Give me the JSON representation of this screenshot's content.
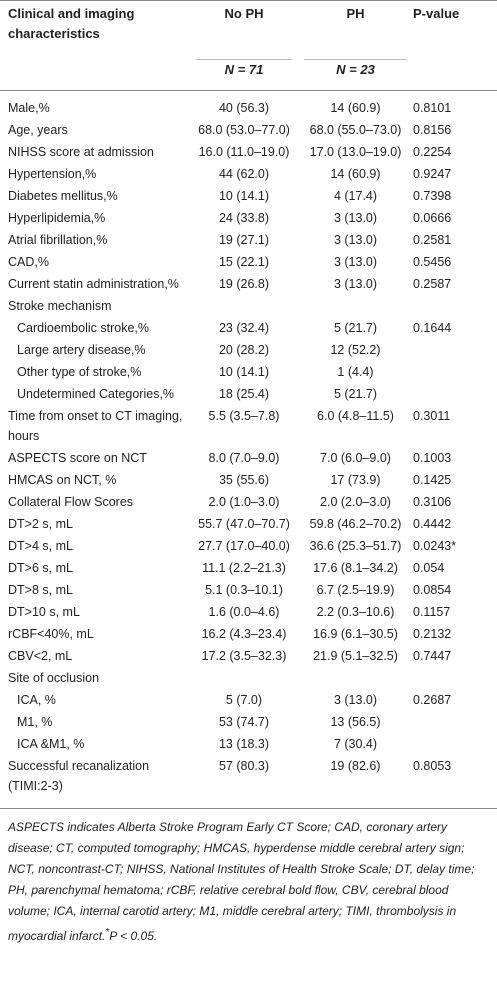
{
  "table": {
    "columns": [
      "Clinical and imaging characteristics",
      "No PH",
      "PH",
      "P-value"
    ],
    "n_row": [
      "N = 71",
      "N = 23"
    ],
    "rows": [
      {
        "label": "Male,%",
        "no_ph": "40 (56.3)",
        "ph": "14 (60.9)",
        "p": "0.8101"
      },
      {
        "label": "Age, years",
        "no_ph": "68.0 (53.0–77.0)",
        "ph": "68.0 (55.0–73.0)",
        "p": "0.8156"
      },
      {
        "label": "NIHSS score at admission",
        "no_ph": "16.0 (11.0–19.0)",
        "ph": "17.0 (13.0–19.0)",
        "p": "0.2254"
      },
      {
        "label": "Hypertension,%",
        "no_ph": "44 (62.0)",
        "ph": "14 (60.9)",
        "p": "0.9247"
      },
      {
        "label": "Diabetes mellitus,%",
        "no_ph": "10 (14.1)",
        "ph": "4 (17.4)",
        "p": "0.7398"
      },
      {
        "label": "Hyperlipidemia,%",
        "no_ph": "24 (33.8)",
        "ph": "3 (13.0)",
        "p": "0.0666"
      },
      {
        "label": "Atrial fibrillation,%",
        "no_ph": "19 (27.1)",
        "ph": "3 (13.0)",
        "p": "0.2581"
      },
      {
        "label": "CAD,%",
        "no_ph": "15 (22.1)",
        "ph": "3 (13.0)",
        "p": "0.5456"
      },
      {
        "label": "Current statin administration,%",
        "no_ph": "19 (26.8)",
        "ph": "3 (13.0)",
        "p": "0.2587"
      },
      {
        "label": "Stroke mechanism",
        "items": [
          {
            "label": "Cardioembolic stroke,%",
            "no_ph": "23 (32.4)",
            "ph": "5 (21.7)",
            "p": "0.1644"
          },
          {
            "label": "Large artery disease,%",
            "no_ph": "20 (28.2)",
            "ph": "12 (52.2)"
          },
          {
            "label": "Other type of stroke,%",
            "no_ph": "10 (14.1)",
            "ph": "1 (4.4)"
          },
          {
            "label": "Undetermined Categories,%",
            "no_ph": "18 (25.4)",
            "ph": "5 (21.7)"
          }
        ]
      },
      {
        "label": "Time from onset to CT imaging, hours",
        "no_ph": "5.5 (3.5–7.8)",
        "ph": "6.0 (4.8–11.5)",
        "p": "0.3011"
      },
      {
        "label": "ASPECTS score on NCT",
        "no_ph": "8.0 (7.0–9.0)",
        "ph": "7.0 (6.0–9.0)",
        "p": "0.1003"
      },
      {
        "label": "HMCAS on NCT, %",
        "no_ph": "35 (55.6)",
        "ph": "17 (73.9)",
        "p": "0.1425"
      },
      {
        "label": "Collateral Flow Scores",
        "no_ph": "2.0 (1.0–3.0)",
        "ph": "2.0 (2.0–3.0)",
        "p": "0.3106"
      },
      {
        "label": "DT>2 s, mL",
        "no_ph": "55.7 (47.0–70.7)",
        "ph": "59.8 (46.2–70.2)",
        "p": "0.4442"
      },
      {
        "label": "DT>4 s, mL",
        "no_ph": "27.7 (17.0–40.0)",
        "ph": "36.6 (25.3–51.7)",
        "p": "0.0243*"
      },
      {
        "label": "DT>6 s, mL",
        "no_ph": "11.1 (2.2–21.3)",
        "ph": "17.6 (8.1–34.2)",
        "p": "0.054"
      },
      {
        "label": "DT>8 s, mL",
        "no_ph": "5.1 (0.3–10.1)",
        "ph": "6.7 (2.5–19.9)",
        "p": "0.0854"
      },
      {
        "label": "DT>10 s, mL",
        "no_ph": "1.6 (0.0–4.6)",
        "ph": "2.2 (0.3–10.6)",
        "p": "0.1157"
      },
      {
        "label": "rCBF<40%, mL",
        "no_ph": "16.2 (4.3–23.4)",
        "ph": "16.9 (6.1–30.5)",
        "p": "0.2132"
      },
      {
        "label": "CBV<2, mL",
        "no_ph": "17.2 (3.5–32.3)",
        "ph": "21.9 (5.1–32.5)",
        "p": "0.7447"
      },
      {
        "label": "Site of occlusion",
        "items": [
          {
            "label": "ICA, %",
            "no_ph": "5 (7.0)",
            "ph": "3 (13.0)",
            "p": "0.2687"
          },
          {
            "label": "M1, %",
            "no_ph": "53 (74.7)",
            "ph": "13 (56.5)"
          },
          {
            "label": "ICA &M1, %",
            "no_ph": "13 (18.3)",
            "ph": "7 (30.4)"
          }
        ]
      },
      {
        "label": "Successful recanalization (TIMI:2-3)",
        "no_ph": "57 (80.3)",
        "ph": "19 (82.6)",
        "p": "0.8053"
      }
    ],
    "footnote": {
      "text": "ASPECTS indicates Alberta Stroke Program Early CT Score; CAD, coronary artery disease; CT, computed tomography; HMCAS, hyperdense middle cerebral artery sign; NCT, noncontrast-CT; NIHSS, National Institutes of Health Stroke Scale; DT, delay time; PH, parenchymal hematoma; rCBF, relative cerebral bold flow, CBV, cerebral blood volume; ICA, internal carotid artery; M1, middle cerebral artery; TIMI, thrombolysis in myocardial infarct.",
      "marker": "*",
      "note": "P < 0.05."
    }
  }
}
